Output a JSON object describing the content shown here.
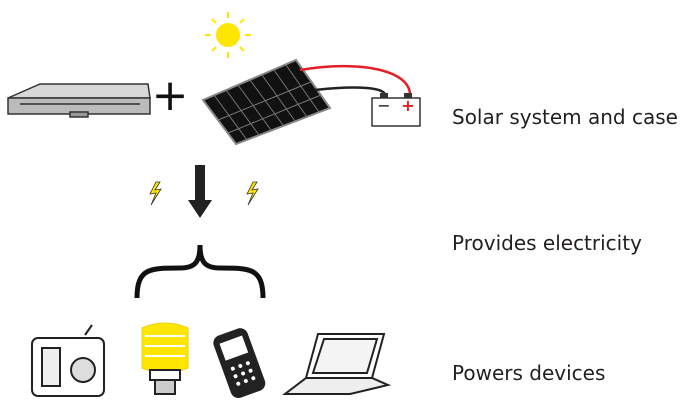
{
  "labels": [
    "Solar system and case",
    "Provides electricity",
    "Powers devices"
  ],
  "operator": "+",
  "battery": {
    "negative": "−",
    "positive": "+"
  }
}
